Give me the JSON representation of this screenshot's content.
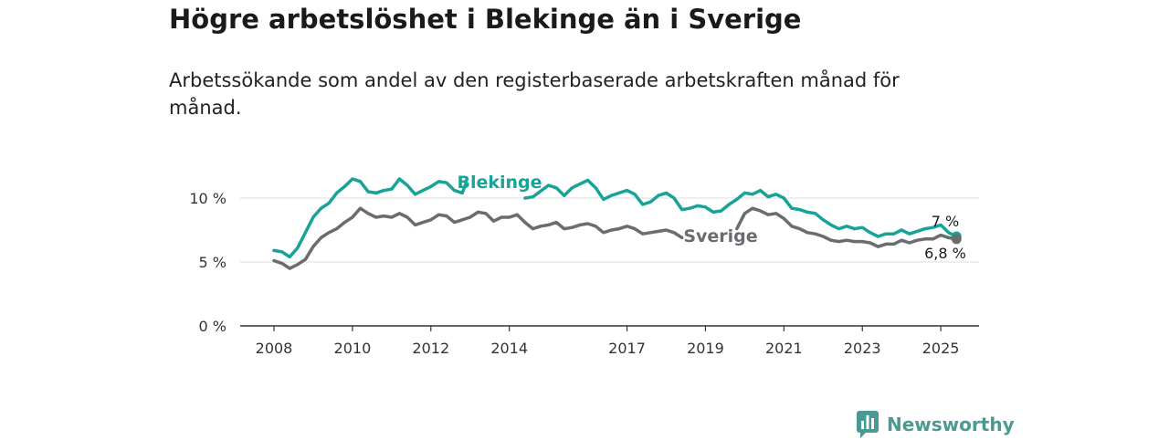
{
  "title": "Högre arbetslöshet i Blekinge än i Sverige",
  "subtitle": "Arbetssökande som andel av den registerbaserade arbetskraften månad för månad.",
  "brand": {
    "name": "Newsworthy",
    "color": "#4a9a93",
    "icon": "newsworthy-logo-icon"
  },
  "chart_data": {
    "type": "line",
    "title": "",
    "xlabel": "",
    "ylabel": "",
    "ylim": [
      0,
      11
    ],
    "y_ticks": [
      0,
      5,
      10
    ],
    "y_tick_labels": [
      "0 %",
      "5 %",
      "10 %"
    ],
    "x_range": [
      2008.0,
      2026.2
    ],
    "x_ticks": [
      2008,
      2010,
      2012,
      2014,
      2017,
      2019,
      2021,
      2023,
      2025
    ],
    "x_tick_labels": [
      "2008",
      "2010",
      "2012",
      "2014",
      "2017",
      "2019",
      "2021",
      "2023",
      "2025"
    ],
    "grid": true,
    "legend": "inline labels on lines",
    "series": [
      {
        "name": "Blekinge",
        "color": "#17a398",
        "end_label": "7 %",
        "points": [
          [
            2008.0,
            5.9
          ],
          [
            2008.2,
            5.8
          ],
          [
            2008.4,
            5.4
          ],
          [
            2008.6,
            6.1
          ],
          [
            2008.8,
            7.3
          ],
          [
            2009.0,
            8.5
          ],
          [
            2009.2,
            9.2
          ],
          [
            2009.4,
            9.6
          ],
          [
            2009.6,
            10.4
          ],
          [
            2009.8,
            10.9
          ],
          [
            2010.0,
            11.5
          ],
          [
            2010.2,
            11.3
          ],
          [
            2010.4,
            10.5
          ],
          [
            2010.6,
            10.4
          ],
          [
            2010.8,
            10.6
          ],
          [
            2011.0,
            10.7
          ],
          [
            2011.2,
            11.5
          ],
          [
            2011.4,
            11.0
          ],
          [
            2011.6,
            10.3
          ],
          [
            2011.8,
            10.6
          ],
          [
            2012.0,
            10.9
          ],
          [
            2012.2,
            11.3
          ],
          [
            2012.4,
            11.2
          ],
          [
            2012.6,
            10.6
          ],
          [
            2012.8,
            10.4
          ],
          [
            2012.9,
            11.2
          ],
          [
            2014.4,
            10.0
          ],
          [
            2014.6,
            10.1
          ],
          [
            2015.0,
            11.0
          ],
          [
            2015.2,
            10.8
          ],
          [
            2015.4,
            10.2
          ],
          [
            2015.6,
            10.8
          ],
          [
            2015.8,
            11.1
          ],
          [
            2016.0,
            11.4
          ],
          [
            2016.2,
            10.8
          ],
          [
            2016.4,
            9.9
          ],
          [
            2016.6,
            10.2
          ],
          [
            2016.8,
            10.4
          ],
          [
            2017.0,
            10.6
          ],
          [
            2017.2,
            10.3
          ],
          [
            2017.4,
            9.5
          ],
          [
            2017.6,
            9.7
          ],
          [
            2017.8,
            10.2
          ],
          [
            2018.0,
            10.4
          ],
          [
            2018.2,
            10.0
          ],
          [
            2018.4,
            9.1
          ],
          [
            2018.6,
            9.2
          ],
          [
            2018.8,
            9.4
          ],
          [
            2019.0,
            9.3
          ],
          [
            2019.2,
            8.9
          ],
          [
            2019.4,
            9.0
          ],
          [
            2019.6,
            9.5
          ],
          [
            2019.8,
            9.9
          ],
          [
            2020.0,
            10.4
          ],
          [
            2020.2,
            10.3
          ],
          [
            2020.4,
            10.6
          ],
          [
            2020.6,
            10.1
          ],
          [
            2020.8,
            10.3
          ],
          [
            2021.0,
            10.0
          ],
          [
            2021.2,
            9.2
          ],
          [
            2021.4,
            9.1
          ],
          [
            2021.6,
            8.9
          ],
          [
            2021.8,
            8.8
          ],
          [
            2022.0,
            8.3
          ],
          [
            2022.2,
            7.9
          ],
          [
            2022.4,
            7.6
          ],
          [
            2022.6,
            7.8
          ],
          [
            2022.8,
            7.6
          ],
          [
            2023.0,
            7.7
          ],
          [
            2023.2,
            7.3
          ],
          [
            2023.4,
            7.0
          ],
          [
            2023.6,
            7.2
          ],
          [
            2023.8,
            7.2
          ],
          [
            2024.0,
            7.5
          ],
          [
            2024.2,
            7.2
          ],
          [
            2024.4,
            7.4
          ],
          [
            2024.6,
            7.6
          ],
          [
            2024.8,
            7.7
          ],
          [
            2025.0,
            7.9
          ],
          [
            2025.2,
            7.3
          ],
          [
            2025.4,
            7.0
          ]
        ]
      },
      {
        "name": "Sverige",
        "color": "#6b6b70",
        "end_label": "6,8 %",
        "points": [
          [
            2008.0,
            5.1
          ],
          [
            2008.2,
            4.9
          ],
          [
            2008.4,
            4.5
          ],
          [
            2008.6,
            4.8
          ],
          [
            2008.8,
            5.2
          ],
          [
            2009.0,
            6.2
          ],
          [
            2009.2,
            6.9
          ],
          [
            2009.4,
            7.3
          ],
          [
            2009.6,
            7.6
          ],
          [
            2009.8,
            8.1
          ],
          [
            2010.0,
            8.5
          ],
          [
            2010.2,
            9.2
          ],
          [
            2010.4,
            8.8
          ],
          [
            2010.6,
            8.5
          ],
          [
            2010.8,
            8.6
          ],
          [
            2011.0,
            8.5
          ],
          [
            2011.2,
            8.8
          ],
          [
            2011.4,
            8.5
          ],
          [
            2011.6,
            7.9
          ],
          [
            2011.8,
            8.1
          ],
          [
            2012.0,
            8.3
          ],
          [
            2012.2,
            8.7
          ],
          [
            2012.4,
            8.6
          ],
          [
            2012.6,
            8.1
          ],
          [
            2012.8,
            8.3
          ],
          [
            2013.0,
            8.5
          ],
          [
            2013.2,
            8.9
          ],
          [
            2013.4,
            8.8
          ],
          [
            2013.6,
            8.2
          ],
          [
            2013.8,
            8.5
          ],
          [
            2014.0,
            8.5
          ],
          [
            2014.2,
            8.7
          ],
          [
            2014.4,
            8.1
          ],
          [
            2014.6,
            7.6
          ],
          [
            2014.8,
            7.8
          ],
          [
            2015.0,
            7.9
          ],
          [
            2015.2,
            8.1
          ],
          [
            2015.4,
            7.6
          ],
          [
            2015.6,
            7.7
          ],
          [
            2015.8,
            7.9
          ],
          [
            2016.0,
            8.0
          ],
          [
            2016.2,
            7.8
          ],
          [
            2016.4,
            7.3
          ],
          [
            2016.6,
            7.5
          ],
          [
            2016.8,
            7.6
          ],
          [
            2017.0,
            7.8
          ],
          [
            2017.2,
            7.6
          ],
          [
            2017.4,
            7.2
          ],
          [
            2017.6,
            7.3
          ],
          [
            2017.8,
            7.4
          ],
          [
            2018.0,
            7.5
          ],
          [
            2018.2,
            7.3
          ],
          [
            2018.4,
            6.9
          ],
          [
            2019.8,
            7.6
          ],
          [
            2020.0,
            8.8
          ],
          [
            2020.2,
            9.2
          ],
          [
            2020.4,
            9.0
          ],
          [
            2020.6,
            8.7
          ],
          [
            2020.8,
            8.8
          ],
          [
            2021.0,
            8.4
          ],
          [
            2021.2,
            7.8
          ],
          [
            2021.4,
            7.6
          ],
          [
            2021.6,
            7.3
          ],
          [
            2021.8,
            7.2
          ],
          [
            2022.0,
            7.0
          ],
          [
            2022.2,
            6.7
          ],
          [
            2022.4,
            6.6
          ],
          [
            2022.6,
            6.7
          ],
          [
            2022.8,
            6.6
          ],
          [
            2023.0,
            6.6
          ],
          [
            2023.2,
            6.5
          ],
          [
            2023.4,
            6.2
          ],
          [
            2023.6,
            6.4
          ],
          [
            2023.8,
            6.4
          ],
          [
            2024.0,
            6.7
          ],
          [
            2024.2,
            6.5
          ],
          [
            2024.4,
            6.7
          ],
          [
            2024.6,
            6.8
          ],
          [
            2024.8,
            6.8
          ],
          [
            2025.0,
            7.1
          ],
          [
            2025.2,
            6.9
          ],
          [
            2025.4,
            6.8
          ]
        ]
      }
    ]
  }
}
